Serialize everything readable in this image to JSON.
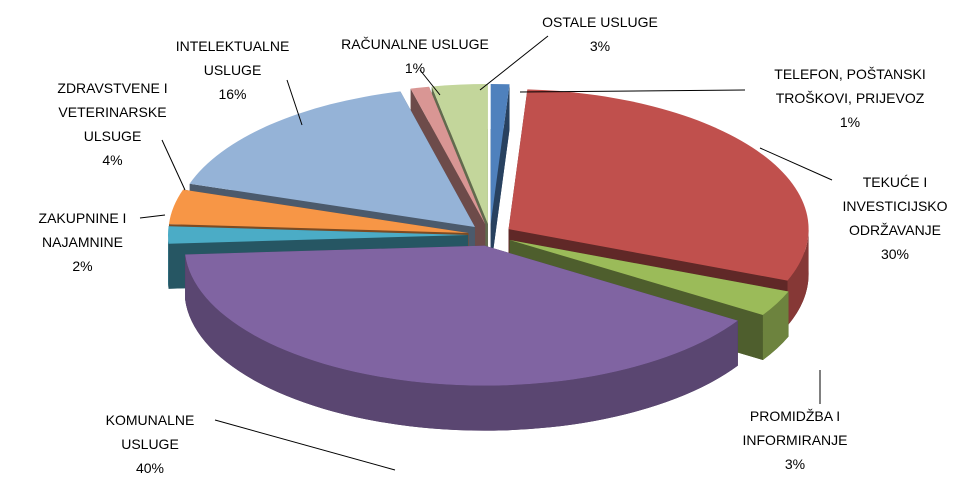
{
  "chart_data": {
    "type": "pie",
    "categories": [
      "TELEFON, POŠTANSKI TROŠKOVI, PRIJEVOZ",
      "TEKUĆE I INVESTICIJSKO ODRŽAVANJE",
      "PROMIDŽBA I INFORMIRANJE",
      "KOMUNALNE USLUGE",
      "ZAKUPNINE I NAJAMNINE",
      "ZDRAVSTVENE I VETERINARSKE ULSUGE",
      "INTELEKTUALNE USLUGE",
      "RAČUNALNE USLUGE",
      "OSTALE USLUGE"
    ],
    "values": [
      1,
      30,
      3,
      40,
      2,
      4,
      16,
      1,
      3
    ],
    "value_labels": [
      "1%",
      "30%",
      "3%",
      "40%",
      "2%",
      "4%",
      "16%",
      "1%",
      "3%"
    ],
    "colors": [
      "#4f81bd",
      "#c0504d",
      "#9bbb59",
      "#8064a2",
      "#4bacc6",
      "#f79646",
      "#95b3d7",
      "#d99694",
      "#c3d69b"
    ]
  }
}
